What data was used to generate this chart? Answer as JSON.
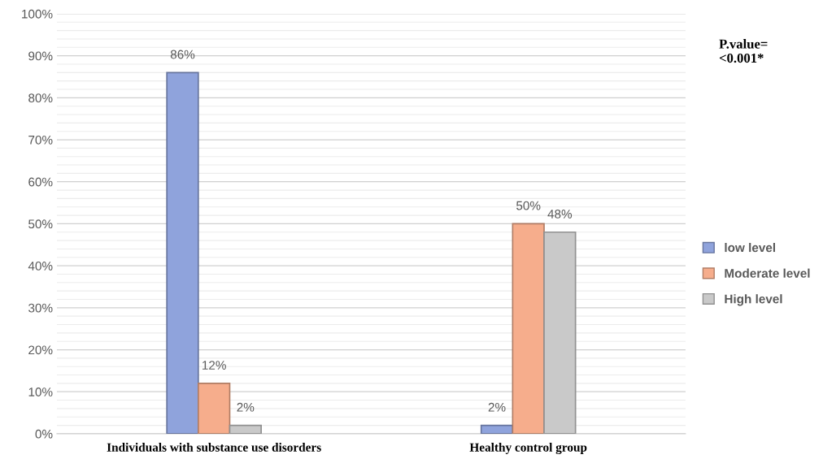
{
  "chart_data": {
    "type": "bar",
    "categories": [
      "Individuals with substance use disorders",
      "Healthy control group"
    ],
    "series": [
      {
        "name": "low level",
        "color": "#8fa3dc",
        "values": [
          86,
          2
        ],
        "value_labels": [
          "86%",
          "2%"
        ]
      },
      {
        "name": "Moderate level",
        "color": "#f6ad8c",
        "values": [
          12,
          50
        ],
        "value_labels": [
          "12%",
          "50%"
        ]
      },
      {
        "name": "High level",
        "color": "#c9c9c9",
        "values": [
          2,
          48
        ],
        "value_labels": [
          "2%",
          "48%"
        ]
      }
    ],
    "ylim": [
      0,
      100
    ],
    "yticks": [
      {
        "value": 0,
        "label": "0%"
      },
      {
        "value": 10,
        "label": "10%"
      },
      {
        "value": 20,
        "label": "20%"
      },
      {
        "value": 30,
        "label": "30%"
      },
      {
        "value": 40,
        "label": "40%"
      },
      {
        "value": 50,
        "label": "50%"
      },
      {
        "value": 60,
        "label": "60%"
      },
      {
        "value": 70,
        "label": "70%"
      },
      {
        "value": 80,
        "label": "80%"
      },
      {
        "value": 90,
        "label": "90%"
      },
      {
        "value": 100,
        "label": "100%"
      }
    ],
    "grid": "y",
    "legend": "right",
    "annotations": [
      "P.value=\n<0.001*"
    ]
  }
}
